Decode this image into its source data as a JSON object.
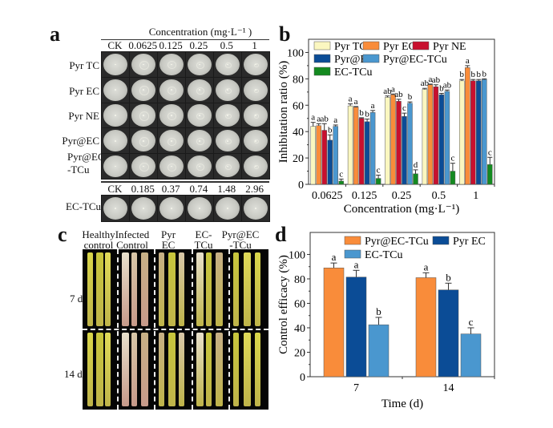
{
  "panels": {
    "a": {
      "label": "a",
      "header": "Concentration (mg·L⁻¹ )",
      "columns": [
        "CK",
        "0.0625",
        "0.125",
        "0.25",
        "0.5",
        "1"
      ],
      "rows": [
        "Pyr TC",
        "Pyr EC",
        "Pyr NE",
        "Pyr@EC",
        "Pyr@EC\n-TCu"
      ],
      "row_lines": [
        [
          "Pyr TC"
        ],
        [
          "Pyr EC"
        ],
        [
          "Pyr NE"
        ],
        [
          "Pyr@EC"
        ],
        [
          "Pyr@EC",
          "-TCu"
        ]
      ],
      "ectcu_columns": [
        "CK",
        "0.185",
        "0.37",
        "0.74",
        "1.48",
        "2.96"
      ],
      "ectcu_row": "EC-TCu"
    },
    "b": {
      "label": "b"
    },
    "c": {
      "label": "c",
      "columns": [
        [
          "Healthy",
          "control"
        ],
        [
          "Infected",
          "Control"
        ],
        [
          "Pyr",
          "EC"
        ],
        [
          "EC-",
          "TCu"
        ],
        [
          "Pyr@EC",
          "-TCu"
        ]
      ],
      "rows": [
        "7 d",
        "14 d"
      ]
    },
    "d": {
      "label": "d"
    }
  },
  "chart_data": [
    {
      "id": "b",
      "type": "bar",
      "title": "",
      "xlabel": "Concentration (mg·L⁻¹)",
      "ylabel": "Inhibitation ratio (%)",
      "ylim": [
        0,
        110
      ],
      "yticks": [
        0,
        20,
        40,
        60,
        80,
        100
      ],
      "categories": [
        "0.0625",
        "0.125",
        "0.25",
        "0.5",
        "1"
      ],
      "legend_position": "top-left",
      "series": [
        {
          "name": "Pyr TC",
          "color": "#fbf7c0",
          "values": [
            44,
            59.5,
            66,
            72,
            78.5
          ],
          "errors": [
            3,
            1.5,
            1,
            0.8,
            1
          ],
          "letters": [
            "a",
            "a",
            "ab",
            "ab",
            "b"
          ]
        },
        {
          "name": "Pyr EC",
          "color": "#f98c3a",
          "values": [
            44.5,
            58.5,
            68,
            75.5,
            88.5
          ],
          "errors": [
            1.5,
            0.5,
            0.5,
            0.5,
            1.5
          ],
          "letters": [
            "a",
            "a",
            "a",
            "a",
            "a"
          ]
        },
        {
          "name": "Pyr NE",
          "color": "#c8102e",
          "values": [
            41,
            50,
            63,
            74,
            78.5
          ],
          "errors": [
            5,
            0.5,
            1.5,
            1.5,
            1
          ],
          "letters": [
            "ab",
            "b",
            "ab",
            "ab",
            "b"
          ]
        },
        {
          "name": "Pyr@EC",
          "color": "#0b4c96",
          "values": [
            33.5,
            47.5,
            51.5,
            68,
            78.5
          ],
          "errors": [
            4,
            2,
            2.5,
            1,
            1
          ],
          "letters": [
            "b",
            "b",
            "c",
            "b",
            "b"
          ]
        },
        {
          "name": "Pyr@EC-TCu",
          "color": "#4a97cf",
          "values": [
            44,
            54.5,
            61.5,
            70.5,
            79.5
          ],
          "errors": [
            1,
            1.5,
            1,
            1,
            0.5
          ],
          "letters": [
            "a",
            "a",
            "b",
            "ab",
            "b"
          ]
        },
        {
          "name": "EC-TCu",
          "color": "#148a20",
          "values": [
            2.5,
            4.5,
            8,
            10,
            15
          ],
          "errors": [
            1.5,
            2.5,
            3,
            6,
            5.5
          ],
          "letters": [
            "c",
            "c",
            "d",
            "c",
            "c"
          ]
        }
      ]
    },
    {
      "id": "d",
      "type": "bar",
      "title": "",
      "xlabel": "Time (d)",
      "ylabel": "Control efficacy (%)",
      "ylim": [
        0,
        118
      ],
      "yticks": [
        0,
        20,
        40,
        60,
        80,
        100
      ],
      "categories": [
        "7",
        "14"
      ],
      "legend_position": "top-right",
      "series": [
        {
          "name": "Pyr@EC-TCu",
          "color": "#f98c3a",
          "values": [
            89,
            81
          ],
          "errors": [
            4,
            4
          ],
          "letters": [
            "a",
            "a"
          ]
        },
        {
          "name": "Pyr EC",
          "color": "#0b4c96",
          "values": [
            81.5,
            71
          ],
          "errors": [
            5.5,
            5.5
          ],
          "letters": [
            "a",
            "b"
          ]
        },
        {
          "name": "EC-TCu",
          "color": "#4a97cf",
          "values": [
            42.5,
            35
          ],
          "errors": [
            6,
            5
          ],
          "letters": [
            "b",
            "c"
          ]
        }
      ]
    }
  ]
}
